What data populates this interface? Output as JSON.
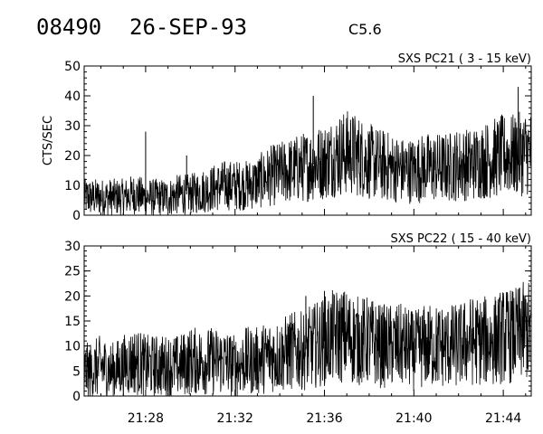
{
  "header": {
    "event_id": "08490",
    "date": "26-SEP-93",
    "flare_class": "C5.6"
  },
  "chart_data": [
    {
      "type": "line",
      "title": "SXS PC21  (  3 - 15 keV)",
      "ylabel": "CTS/SEC",
      "xlabel": "",
      "ylim": [
        0,
        50
      ],
      "yticks": [
        0,
        10,
        20,
        30,
        40,
        50
      ],
      "xlim_minutes": [
        "21:25:15",
        "21:45:15"
      ],
      "xticks": [],
      "x_tick_labels": [],
      "grid": false,
      "series": [
        {
          "x": [
            "21:25:30",
            "21:26:00",
            "21:26:30",
            "21:27:00",
            "21:27:30",
            "21:28:00",
            "21:28:30",
            "21:29:00",
            "21:29:30",
            "21:30:00",
            "21:30:30",
            "21:31:00",
            "21:31:30",
            "21:32:00",
            "21:32:30",
            "21:33:00",
            "21:33:30",
            "21:34:00",
            "21:34:30",
            "21:35:00",
            "21:35:30",
            "21:36:00",
            "21:36:30",
            "21:37:00",
            "21:37:30",
            "21:38:00",
            "21:38:30",
            "21:39:00",
            "21:39:30",
            "21:40:00",
            "21:40:30",
            "21:41:00",
            "21:41:30",
            "21:42:00",
            "21:42:30",
            "21:43:00",
            "21:43:30",
            "21:44:00",
            "21:44:30",
            "21:45:00"
          ],
          "values": [
            6,
            6,
            6,
            6,
            7,
            6,
            6,
            6,
            7,
            7,
            8,
            9,
            10,
            10,
            10,
            11,
            13,
            14,
            15,
            16,
            17,
            18,
            20,
            21,
            20,
            18,
            17,
            16,
            15,
            15,
            16,
            16,
            16,
            17,
            17,
            18,
            19,
            20,
            20,
            21
          ],
          "spikes": [
            {
              "x": "21:28:00",
              "value": 28
            },
            {
              "x": "21:29:50",
              "value": 20
            },
            {
              "x": "21:35:30",
              "value": 40
            },
            {
              "x": "21:37:10",
              "value": 32
            },
            {
              "x": "21:44:40",
              "value": 43
            }
          ]
        }
      ]
    },
    {
      "type": "line",
      "title": "SXS PC22  ( 15 - 40 keV)",
      "ylabel": "",
      "xlabel": "",
      "ylim": [
        0,
        30
      ],
      "yticks": [
        0,
        5,
        10,
        15,
        20,
        25,
        30
      ],
      "xlim_minutes": [
        "21:25:15",
        "21:45:15"
      ],
      "xticks": [
        "21:28",
        "21:32",
        "21:36",
        "21:40",
        "21:44"
      ],
      "x_tick_labels": [
        "21:28",
        "21:32",
        "21:36",
        "21:40",
        "21:44"
      ],
      "grid": false,
      "series": [
        {
          "x": [
            "21:25:30",
            "21:26:00",
            "21:26:30",
            "21:27:00",
            "21:27:30",
            "21:28:00",
            "21:28:30",
            "21:29:00",
            "21:29:30",
            "21:30:00",
            "21:30:30",
            "21:31:00",
            "21:31:30",
            "21:32:00",
            "21:32:30",
            "21:33:00",
            "21:33:30",
            "21:34:00",
            "21:34:30",
            "21:35:00",
            "21:35:30",
            "21:36:00",
            "21:36:30",
            "21:37:00",
            "21:37:30",
            "21:38:00",
            "21:38:30",
            "21:39:00",
            "21:39:30",
            "21:40:00",
            "21:40:30",
            "21:41:00",
            "21:41:30",
            "21:42:00",
            "21:42:30",
            "21:43:00",
            "21:43:30",
            "21:44:00",
            "21:44:30",
            "21:45:00"
          ],
          "values": [
            5,
            6,
            5,
            6,
            7,
            6,
            6,
            6,
            6,
            7,
            7,
            7,
            7,
            6,
            7,
            7,
            8,
            8,
            9,
            9,
            10,
            11,
            12,
            12,
            11,
            11,
            10,
            10,
            10,
            9,
            10,
            10,
            10,
            10,
            11,
            11,
            11,
            12,
            12,
            13
          ],
          "spikes": [
            {
              "x": "21:35:10",
              "value": 20
            },
            {
              "x": "21:36:00",
              "value": 21
            },
            {
              "x": "21:36:50",
              "value": 20
            },
            {
              "x": "21:44:50",
              "value": 19
            }
          ]
        }
      ]
    }
  ]
}
